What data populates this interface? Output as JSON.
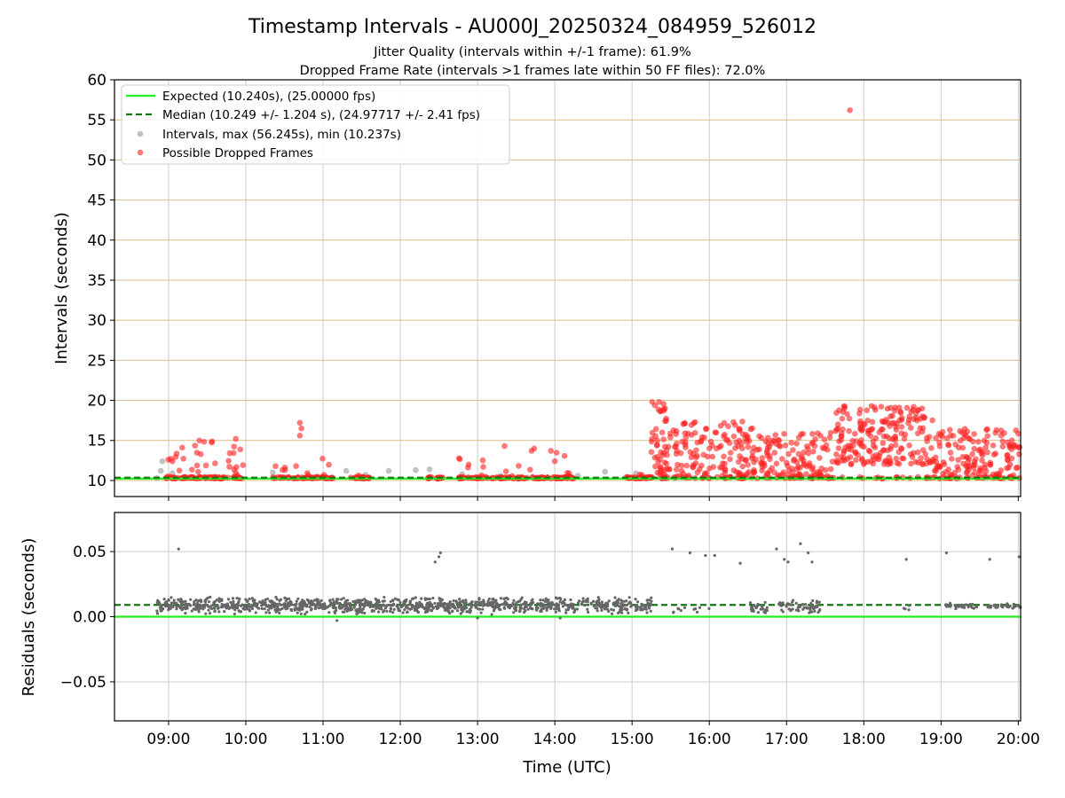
{
  "title": "Timestamp Intervals - AU000J_20250324_084959_526012",
  "subtitle_line1": "Jitter Quality (intervals within +/-1 frame): 61.9%",
  "subtitle_line2": "Dropped Frame Rate (intervals >1 frames late within 50 FF files): 72.0%",
  "colors": {
    "expected": "#22ee22",
    "median": "#117711",
    "intervals": "#999999",
    "dropped": "#ff2020",
    "residual": "#666666",
    "hgrid_top": "#d4c089",
    "grid": "#cccccc"
  },
  "legend": {
    "expected": "Expected (10.240s), (25.00000 fps)",
    "median": "Median (10.249 +/- 1.204 s), (24.97717 +/- 2.41 fps)",
    "intervals": "Intervals, max (56.245s), min (10.237s)",
    "dropped": "Possible Dropped Frames"
  },
  "chart_data": [
    {
      "type": "scatter",
      "xlabel": "",
      "ylabel": "Intervals (seconds)",
      "xlim_hours": [
        8.3,
        20.03
      ],
      "ylim": [
        8,
        60
      ],
      "yticks": [
        10,
        15,
        20,
        25,
        30,
        35,
        40,
        45,
        50,
        55,
        60
      ],
      "yticklabels": [
        "10",
        "15",
        "20",
        "25",
        "30",
        "35",
        "40",
        "45",
        "50",
        "55",
        "60"
      ],
      "grid": true,
      "legend_position": "top-left",
      "expected_interval": 10.24,
      "median_interval": 10.249,
      "max_interval": 56.245,
      "min_interval": 10.237,
      "series": [
        {
          "name": "Intervals, max (56.245s), min (10.237s)",
          "points": [
            [
              8.85,
              10.3
            ],
            [
              8.9,
              11.2
            ],
            [
              8.92,
              12.4
            ],
            [
              9.05,
              10.9
            ],
            [
              9.6,
              10.5
            ],
            [
              10.35,
              11.0
            ],
            [
              11.0,
              10.5
            ],
            [
              11.3,
              11.2
            ],
            [
              11.55,
              10.7
            ],
            [
              11.85,
              11.2
            ],
            [
              12.2,
              11.3
            ],
            [
              12.38,
              11.4
            ],
            [
              12.8,
              10.8
            ],
            [
              13.3,
              10.6
            ],
            [
              14.3,
              10.6
            ],
            [
              14.65,
              11.1
            ],
            [
              15.05,
              10.9
            ],
            [
              15.45,
              10.3
            ],
            [
              16.2,
              10.3
            ],
            [
              17.3,
              10.3
            ]
          ]
        },
        {
          "name": "Possible Dropped Frames",
          "bands": [
            {
              "start": 8.97,
              "end": 9.97,
              "base": 10.3,
              "max": 15.4,
              "prob": 0.35,
              "density": 110
            },
            {
              "start": 10.35,
              "end": 11.15,
              "base": 10.3,
              "max": 13.0,
              "prob": 0.18,
              "density": 70
            },
            {
              "start": 11.35,
              "end": 11.6,
              "base": 10.3,
              "max": 11.0,
              "prob": 0.1,
              "density": 25
            },
            {
              "start": 12.35,
              "end": 12.55,
              "base": 10.3,
              "max": 11.0,
              "prob": 0.1,
              "density": 20
            },
            {
              "start": 12.75,
              "end": 14.25,
              "base": 10.3,
              "max": 14.3,
              "prob": 0.1,
              "density": 130
            },
            {
              "start": 14.9,
              "end": 15.3,
              "base": 10.3,
              "max": 11.5,
              "prob": 0.05,
              "density": 35
            },
            {
              "start": 15.25,
              "end": 15.45,
              "base": 10.5,
              "max": 19.8,
              "prob": 0.85,
              "density": 50
            },
            {
              "start": 15.45,
              "end": 16.6,
              "base": 10.3,
              "max": 17.4,
              "prob": 0.85,
              "density": 170
            },
            {
              "start": 16.6,
              "end": 17.6,
              "base": 10.3,
              "max": 16.0,
              "prob": 0.85,
              "density": 140
            },
            {
              "start": 17.6,
              "end": 18.9,
              "base": 12.0,
              "max": 19.3,
              "prob": 0.92,
              "density": 220
            },
            {
              "start": 18.9,
              "end": 20.03,
              "base": 10.3,
              "max": 16.5,
              "prob": 0.85,
              "density": 170
            }
          ],
          "points": [
            [
              9.05,
              12.4
            ],
            [
              10.7,
              17.2
            ],
            [
              10.72,
              16.5
            ],
            [
              10.7,
              15.6
            ],
            [
              13.35,
              14.3
            ],
            [
              13.7,
              13.7
            ],
            [
              13.95,
              13.7
            ],
            [
              15.35,
              19.8
            ],
            [
              17.82,
              56.2
            ],
            [
              18.1,
              19.3
            ],
            [
              18.4,
              18.7
            ],
            [
              19.6,
              16.4
            ]
          ]
        }
      ]
    },
    {
      "type": "scatter",
      "xlabel": "Time (UTC)",
      "ylabel": "Residuals (seconds)",
      "xlim_hours": [
        8.3,
        20.03
      ],
      "ylim": [
        -0.08,
        0.08
      ],
      "yticks": [
        0.05,
        0.0,
        -0.05
      ],
      "yticklabels": [
        "0.05",
        "0.00",
        "−0.05"
      ],
      "xticks_hours": [
        9,
        10,
        11,
        12,
        13,
        14,
        15,
        16,
        17,
        18,
        19,
        20
      ],
      "xticklabels": [
        "09:00",
        "10:00",
        "11:00",
        "12:00",
        "13:00",
        "14:00",
        "15:00",
        "16:00",
        "17:00",
        "18:00",
        "19:00",
        "20:00"
      ],
      "grid": true,
      "expected_residual": 0.0,
      "median_residual": 0.009,
      "series": [
        {
          "name": "Residuals",
          "bands": [
            {
              "start": 8.85,
              "end": 15.25,
              "center": 0.0085,
              "spread": 0.007,
              "density": 1100
            },
            {
              "start": 15.5,
              "end": 16.0,
              "center": 0.006,
              "spread": 0.004,
              "density": 12
            },
            {
              "start": 16.5,
              "end": 16.75,
              "center": 0.007,
              "spread": 0.005,
              "density": 25
            },
            {
              "start": 16.9,
              "end": 17.45,
              "center": 0.008,
              "spread": 0.006,
              "density": 60
            },
            {
              "start": 18.5,
              "end": 18.6,
              "center": 0.007,
              "spread": 0.002,
              "density": 4
            },
            {
              "start": 19.05,
              "end": 19.5,
              "center": 0.008,
              "spread": 0.003,
              "density": 30
            },
            {
              "start": 19.6,
              "end": 20.03,
              "center": 0.008,
              "spread": 0.002,
              "density": 35
            }
          ],
          "points": [
            [
              9.13,
              0.052
            ],
            [
              12.45,
              0.042
            ],
            [
              12.5,
              0.046
            ],
            [
              12.52,
              0.049
            ],
            [
              15.52,
              0.052
            ],
            [
              15.75,
              0.049
            ],
            [
              15.95,
              0.047
            ],
            [
              16.07,
              0.047
            ],
            [
              16.4,
              0.041
            ],
            [
              16.87,
              0.052
            ],
            [
              16.97,
              0.044
            ],
            [
              17.02,
              0.042
            ],
            [
              17.18,
              0.056
            ],
            [
              17.28,
              0.049
            ],
            [
              17.33,
              0.042
            ],
            [
              18.55,
              0.044
            ],
            [
              19.07,
              0.049
            ],
            [
              19.63,
              0.044
            ],
            [
              20.01,
              0.046
            ],
            [
              11.18,
              -0.003
            ],
            [
              13.0,
              -0.001
            ],
            [
              14.07,
              -0.001
            ]
          ]
        }
      ]
    }
  ]
}
